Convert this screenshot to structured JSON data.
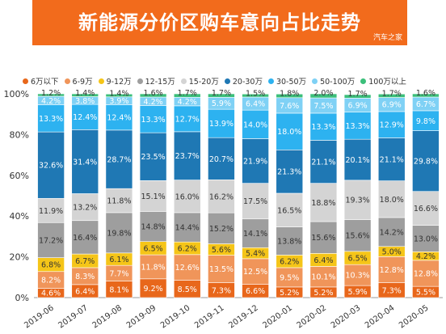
{
  "banner": {
    "title": "新能源分价区购车意向占比走势",
    "brand": "汽车之家"
  },
  "colors": {
    "banner": "#f26b1c",
    "series": [
      "#e8671b",
      "#f0955a",
      "#f5c518",
      "#9e9e9e",
      "#d4d4d4",
      "#1f78b4",
      "#2db2f0",
      "#7fd1f5",
      "#3bbf7a"
    ]
  },
  "chart_data": {
    "type": "bar",
    "stacked": true,
    "title": "新能源分价区购车意向占比走势",
    "xlabel": "",
    "ylabel": "",
    "ylim": [
      0,
      100
    ],
    "yticks": [
      "0%",
      "20%",
      "40%",
      "60%",
      "80%",
      "100%"
    ],
    "grid": false,
    "legend_position": "top",
    "categories": [
      "2019-06",
      "2019-07",
      "2019-08",
      "2019-09",
      "2019-10",
      "2019-11",
      "2019-12",
      "2020-01",
      "2020-02",
      "2020-03",
      "2020-04",
      "2020-05"
    ],
    "series": [
      {
        "name": "6万以下",
        "values": [
          4.6,
          6.4,
          8.1,
          9.2,
          8.5,
          7.3,
          6.6,
          5.2,
          5.2,
          5.9,
          7.3,
          5.5
        ]
      },
      {
        "name": "6-9万",
        "values": [
          8.2,
          8.3,
          7.7,
          11.8,
          12.6,
          13.5,
          12.5,
          9.5,
          10.1,
          10.3,
          12.8,
          12.8
        ]
      },
      {
        "name": "9-12万",
        "values": [
          6.8,
          6.7,
          6.1,
          6.5,
          6.2,
          5.6,
          5.4,
          6.2,
          6.4,
          6.5,
          5.0,
          4.2
        ]
      },
      {
        "name": "12-15万",
        "values": [
          17.2,
          16.4,
          19.8,
          14.8,
          14.4,
          15.2,
          14.1,
          13.8,
          15.6,
          15.6,
          14.2,
          13.0
        ]
      },
      {
        "name": "15-20万",
        "values": [
          11.9,
          13.2,
          11.8,
          15.1,
          16.0,
          16.2,
          17.5,
          16.5,
          18.8,
          19.3,
          18.0,
          16.6
        ]
      },
      {
        "name": "20-30万",
        "values": [
          32.6,
          31.4,
          28.7,
          23.5,
          23.7,
          20.7,
          21.9,
          21.3,
          21.1,
          20.1,
          21.1,
          29.8
        ]
      },
      {
        "name": "30-50万",
        "values": [
          13.3,
          12.4,
          12.4,
          13.3,
          12.7,
          13.9,
          14.0,
          18.0,
          13.3,
          13.3,
          12.9,
          9.8
        ]
      },
      {
        "name": "50-100万",
        "values": [
          4.2,
          3.8,
          3.9,
          4.2,
          4.2,
          5.9,
          6.4,
          7.6,
          7.5,
          6.9,
          6.9,
          6.7
        ]
      },
      {
        "name": "100万以上",
        "values": [
          1.2,
          1.4,
          1.4,
          1.6,
          1.7,
          1.7,
          1.5,
          1.8,
          2.0,
          1.7,
          1.7,
          1.6
        ]
      }
    ],
    "top_labels": [
      "1.2%",
      "1.4%",
      "1.4%",
      "1.6%",
      "1.7%",
      "1.7%",
      "1.5%",
      "1.8%",
      "2.0%",
      "1.7%",
      "1.7%",
      "1.6%"
    ]
  }
}
